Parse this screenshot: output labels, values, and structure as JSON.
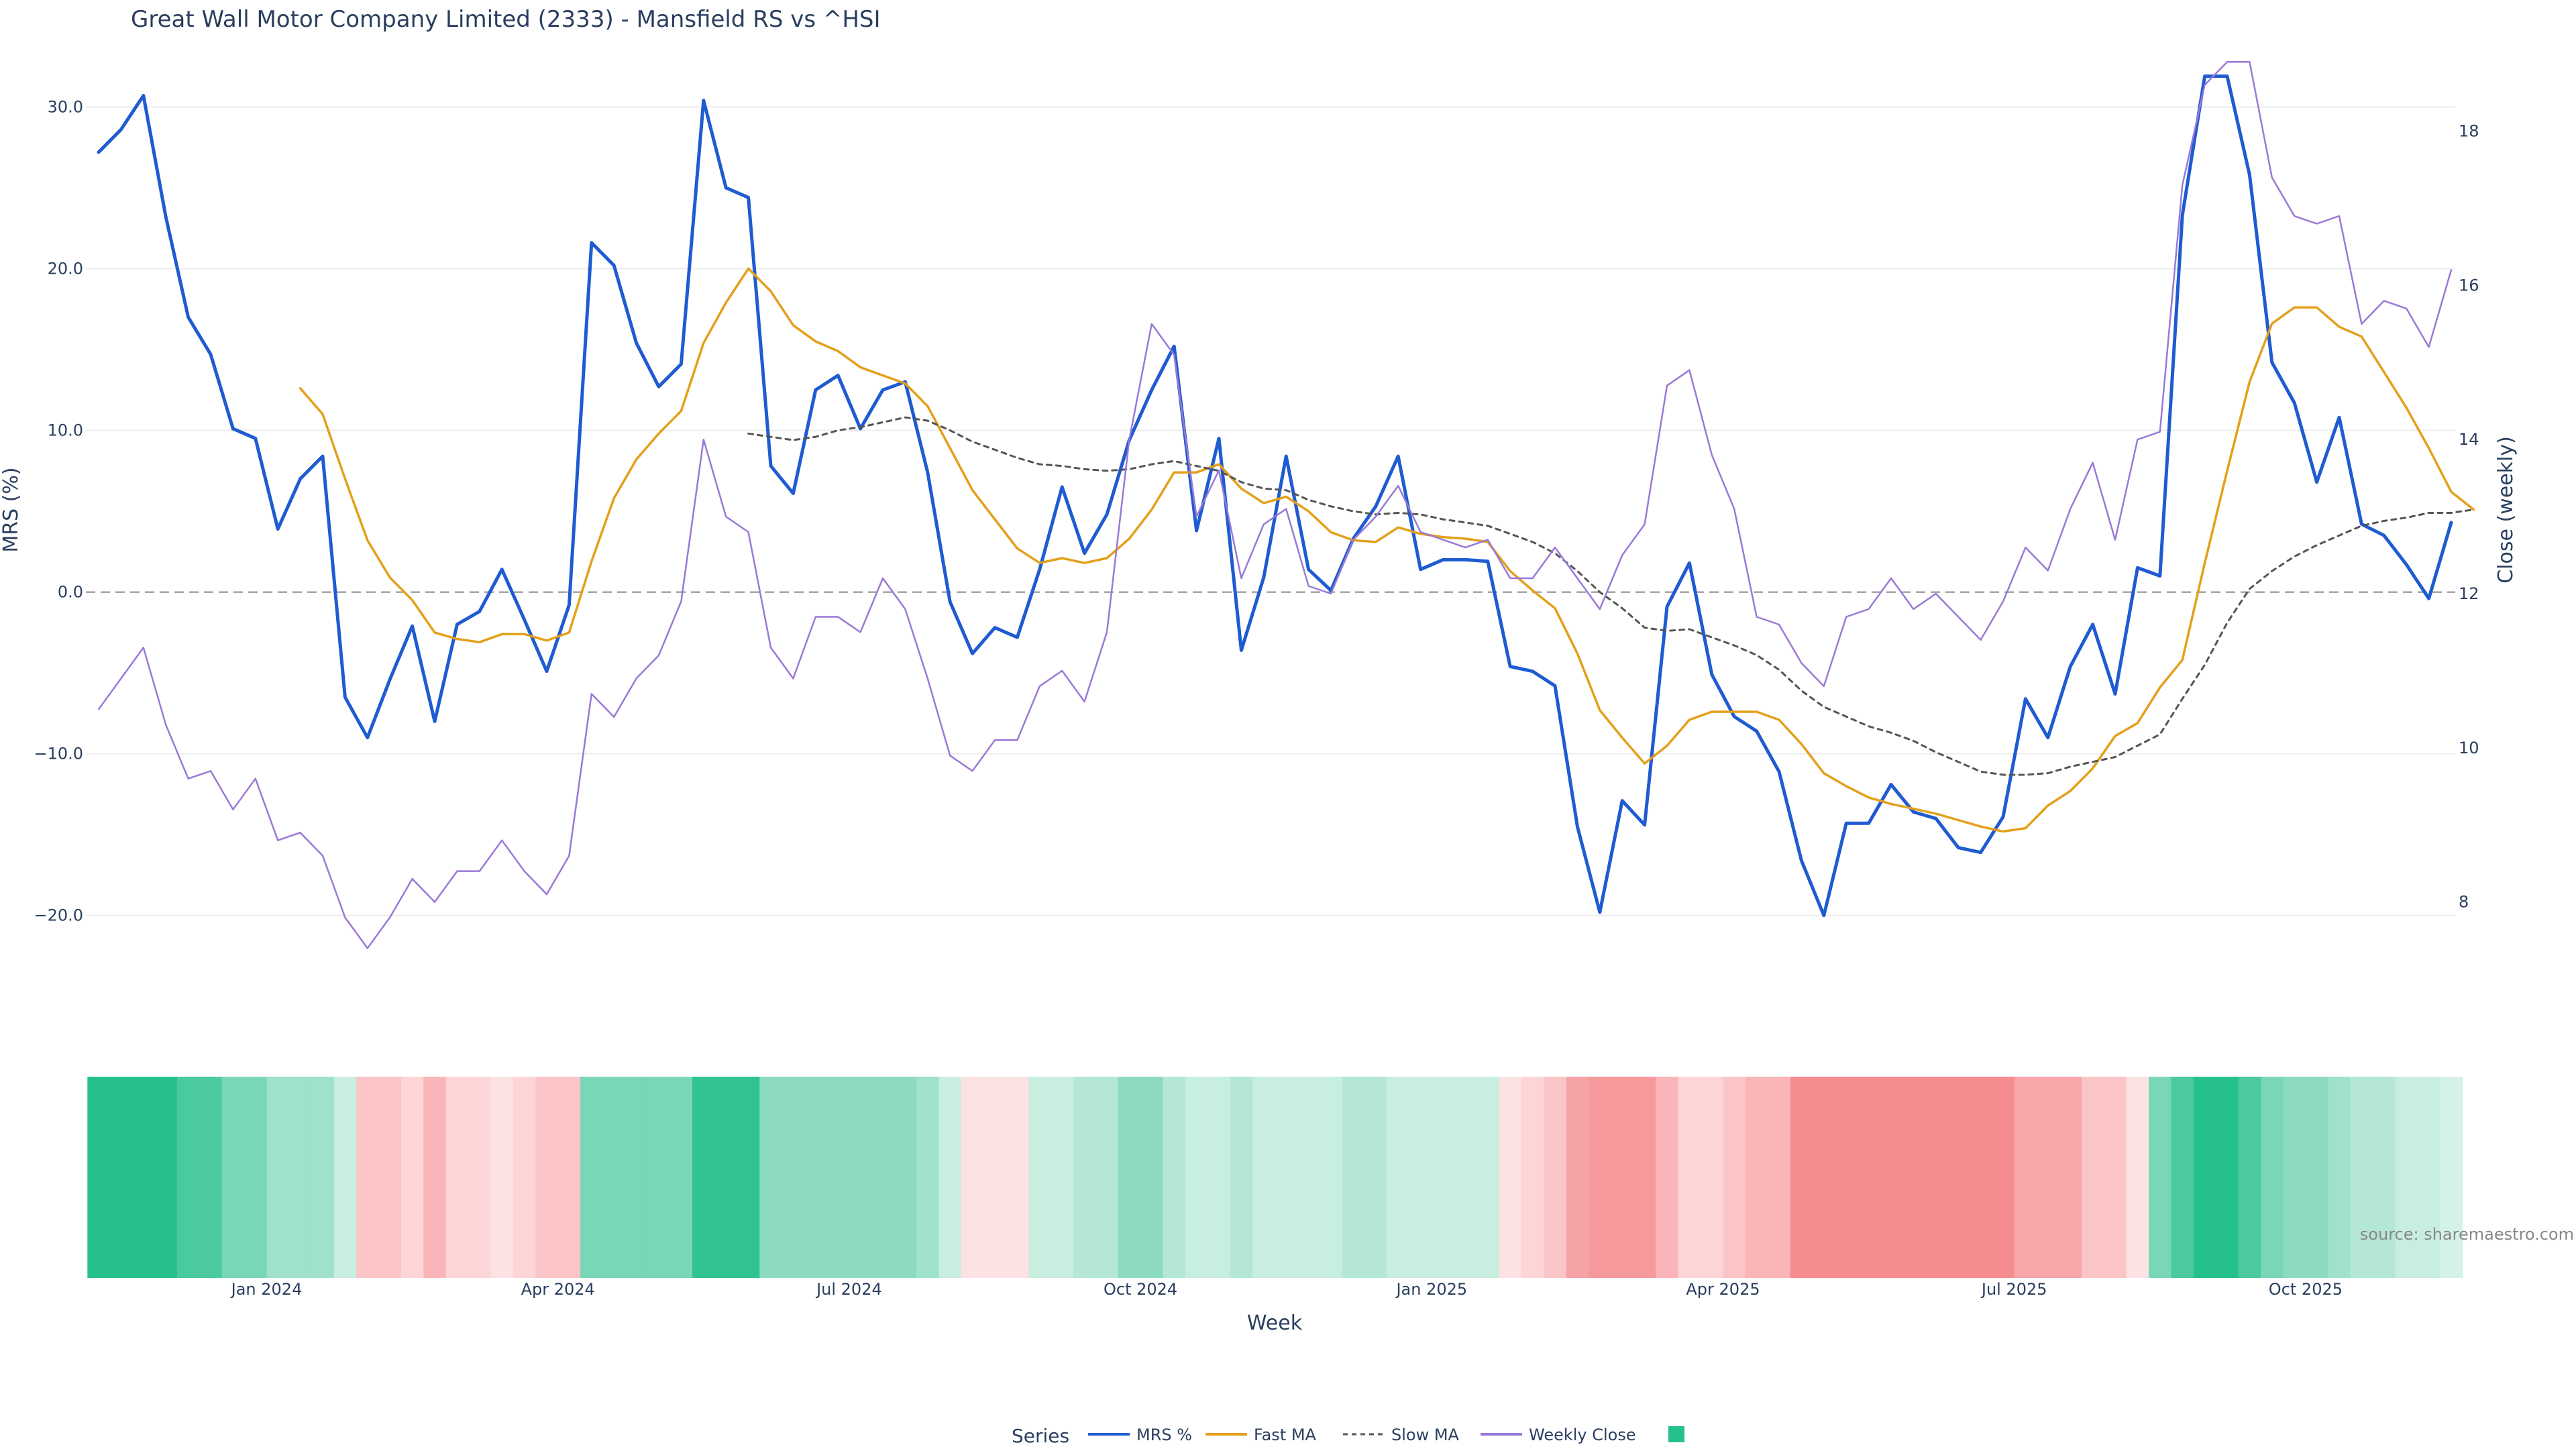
{
  "title": "Great Wall Motor Company Limited (2333) - Mansfield RS vs ^HSI",
  "source": "source: sharemaestro.com",
  "legend": {
    "title": "Series",
    "items": [
      {
        "label": "MRS %",
        "color": "#1f5bd1",
        "style": "solid"
      },
      {
        "label": "Fast MA",
        "color": "#e3a01b",
        "style": "solid"
      },
      {
        "label": "Slow MA",
        "color": "#555555",
        "style": "dotted"
      },
      {
        "label": "Weekly Close",
        "color": "#9a79d6",
        "style": "solid"
      },
      {
        "label": "",
        "color": "#26c08e",
        "style": "square"
      }
    ]
  },
  "chart_data": {
    "type": "line",
    "x_label": "Week",
    "y_label": "MRS (%)",
    "y2_label": "Close (weekly)",
    "y_ticks": [
      30.0,
      20.0,
      10.0,
      0.0,
      -10.0,
      -20.0
    ],
    "y_tick_labels": [
      "30.0",
      "20.0",
      "10.0",
      "0.0",
      "−10.0",
      "−20.0"
    ],
    "y_range": [
      -22.5,
      33.5
    ],
    "y2_ticks": [
      8,
      10,
      12,
      14,
      16,
      18
    ],
    "y2_range": [
      7.3,
      19.05
    ],
    "x_tick_labels": [
      "Jan 2024",
      "Apr 2024",
      "Jul 2024",
      "Oct 2024",
      "Jan 2025",
      "Apr 2025",
      "Jul 2025",
      "Oct 2025"
    ],
    "x_tick_weeks": [
      7.5,
      20.5,
      33.5,
      46.5,
      59.5,
      72.5,
      85.5,
      98.5
    ],
    "zero_line": 0,
    "grid": true,
    "legend_position": "bottom-center",
    "series": [
      {
        "name": "MRS %",
        "color": "#1f5bd1",
        "axis": "left",
        "values": [
          27.2,
          28.6,
          30.7,
          23.2,
          17.0,
          14.7,
          10.1,
          9.5,
          3.9,
          7.0,
          8.4,
          -6.5,
          -9.0,
          -5.4,
          -2.1,
          -8.0,
          -2.0,
          -1.2,
          1.4,
          -1.7,
          -4.9,
          -0.8,
          21.6,
          20.2,
          15.4,
          12.7,
          14.1,
          30.4,
          25.0,
          24.4,
          7.8,
          6.1,
          12.5,
          13.4,
          10.1,
          12.5,
          13.0,
          7.4,
          -0.6,
          -3.8,
          -2.2,
          -2.8,
          1.4,
          6.5,
          2.4,
          4.8,
          9.4,
          12.5,
          15.2,
          3.8,
          9.5,
          -3.6,
          0.9,
          8.4,
          1.4,
          0.1,
          3.3,
          5.3,
          8.4,
          1.4,
          2.0,
          2.0,
          1.9,
          -4.6,
          -4.9,
          -5.8,
          -14.5,
          -19.8,
          -12.9,
          -14.4,
          -0.9,
          1.8,
          -5.1,
          -7.7,
          -8.6,
          -11.1,
          -16.6,
          -20.0,
          -14.3,
          -14.3,
          -11.9,
          -13.6,
          -14.0,
          -15.8,
          -16.1,
          -13.9,
          -6.6,
          -9.0,
          -4.6,
          -2.0,
          -6.3,
          1.5,
          1.0,
          23.3,
          31.9,
          31.9,
          25.8,
          14.2,
          11.7,
          6.8,
          10.8,
          4.2,
          3.5,
          1.7,
          -0.4,
          4.3
        ]
      },
      {
        "name": "Fast MA",
        "color": "#e3a01b",
        "axis": "left",
        "values": [
          null,
          null,
          null,
          null,
          null,
          null,
          null,
          null,
          null,
          12.6,
          11.0,
          7.0,
          3.2,
          0.9,
          -0.5,
          -2.5,
          -2.9,
          -3.1,
          -2.6,
          -2.6,
          -3.0,
          -2.5,
          1.9,
          5.8,
          8.2,
          9.8,
          11.2,
          15.4,
          17.9,
          20.0,
          18.6,
          16.5,
          15.5,
          14.9,
          13.9,
          13.4,
          12.9,
          11.5,
          8.9,
          6.3,
          4.5,
          2.7,
          1.8,
          2.1,
          1.8,
          2.1,
          3.3,
          5.1,
          7.4,
          7.4,
          7.9,
          6.4,
          5.5,
          5.9,
          5.0,
          3.7,
          3.2,
          3.1,
          4.0,
          3.6,
          3.4,
          3.3,
          3.1,
          1.3,
          0.1,
          -1.0,
          -3.8,
          -7.3,
          -9.0,
          -10.6,
          -9.5,
          -7.9,
          -7.4,
          -7.4,
          -7.4,
          -7.9,
          -9.4,
          -11.2,
          -12.0,
          -12.7,
          -13.1,
          -13.4,
          -13.7,
          -14.1,
          -14.5,
          -14.8,
          -14.6,
          -13.2,
          -12.3,
          -10.9,
          -8.9,
          -8.1,
          -5.9,
          -4.2,
          1.8,
          7.5,
          13.0,
          16.6,
          17.6,
          17.6,
          16.4,
          15.8,
          13.6,
          11.4,
          8.9,
          6.2,
          5.1
        ]
      },
      {
        "name": "Slow MA",
        "color": "#555555",
        "axis": "left",
        "values": [
          null,
          null,
          null,
          null,
          null,
          null,
          null,
          null,
          null,
          null,
          null,
          null,
          null,
          null,
          null,
          null,
          null,
          null,
          null,
          null,
          null,
          null,
          null,
          null,
          null,
          null,
          null,
          null,
          null,
          9.8,
          9.6,
          9.4,
          9.6,
          10.0,
          10.2,
          10.5,
          10.8,
          10.6,
          10.0,
          9.3,
          8.8,
          8.3,
          7.9,
          7.8,
          7.6,
          7.5,
          7.6,
          7.9,
          8.1,
          7.8,
          7.5,
          6.8,
          6.4,
          6.3,
          5.7,
          5.3,
          5.0,
          4.8,
          4.9,
          4.8,
          4.5,
          4.3,
          4.1,
          3.6,
          3.1,
          2.4,
          1.3,
          0.0,
          -1.0,
          -2.2,
          -2.4,
          -2.3,
          -2.8,
          -3.3,
          -3.9,
          -4.8,
          -6.1,
          -7.1,
          -7.7,
          -8.3,
          -8.7,
          -9.2,
          -9.9,
          -10.5,
          -11.1,
          -11.3,
          -11.3,
          -11.2,
          -10.8,
          -10.5,
          -10.2,
          -9.5,
          -8.8,
          -6.6,
          -4.5,
          -1.9,
          0.2,
          1.3,
          2.2,
          2.9,
          3.5,
          4.1,
          4.4,
          4.6,
          4.9,
          4.9,
          5.1
        ]
      },
      {
        "name": "Weekly Close",
        "color": "#9a79d6",
        "axis": "right",
        "values": [
          10.5,
          10.9,
          11.3,
          10.3,
          9.6,
          9.7,
          9.2,
          9.6,
          8.8,
          8.9,
          8.6,
          7.8,
          7.4,
          7.8,
          8.3,
          8.0,
          8.4,
          8.4,
          8.8,
          8.4,
          8.1,
          8.6,
          10.7,
          10.4,
          10.9,
          11.2,
          11.9,
          14.0,
          13.0,
          12.8,
          11.3,
          10.9,
          11.7,
          11.7,
          11.5,
          12.2,
          11.8,
          10.9,
          9.9,
          9.7,
          10.1,
          10.1,
          10.8,
          11.0,
          10.6,
          11.5,
          14.0,
          15.5,
          15.1,
          13.0,
          13.6,
          12.2,
          12.9,
          13.1,
          12.1,
          12.0,
          12.7,
          13.0,
          13.4,
          12.8,
          12.7,
          12.6,
          12.7,
          12.2,
          12.2,
          12.6,
          12.2,
          11.8,
          12.5,
          12.9,
          14.7,
          14.9,
          13.8,
          13.1,
          11.7,
          11.6,
          11.1,
          10.8,
          11.7,
          11.8,
          12.2,
          11.8,
          12.0,
          11.7,
          11.4,
          11.9,
          12.6,
          12.3,
          13.1,
          13.7,
          12.7,
          14.0,
          14.1,
          17.3,
          18.6,
          18.9,
          18.9,
          17.4,
          16.9,
          16.8,
          16.9,
          15.5,
          15.8,
          15.7,
          15.2,
          16.2
        ]
      }
    ],
    "heat_colors": [
      "#26c08e",
      "#26c08e",
      "#26c08e",
      "#26c08e",
      "#4cca9f",
      "#4cca9f",
      "#79d6b7",
      "#79d6b7",
      "#9fe1ca",
      "#9fe1ca",
      "#9fe1ca",
      "#c8eedf",
      "#fbc5c8",
      "#fbc5c8",
      "#fdd5d7",
      "#f9b5b8",
      "#fdd5d7",
      "#fdd5d7",
      "#fde2e3",
      "#fdd5d7",
      "#fbc5c8",
      "#fbc5c8",
      "#79d6b7",
      "#79d6b7",
      "#79d6b7",
      "#79d6b7",
      "#79d6b7",
      "#30c292",
      "#30c292",
      "#30c292",
      "#8cdbbf",
      "#8cdbbf",
      "#8cdbbf",
      "#8cdbbf",
      "#8cdbbf",
      "#8cdbbf",
      "#8cdbbf",
      "#9fe1ca",
      "#c8eedf",
      "#fde2e3",
      "#fde2e3",
      "#fde2e3",
      "#c8eedf",
      "#c8eedf",
      "#b4e8d4",
      "#b4e8d4",
      "#8cdbbf",
      "#8cdbbf",
      "#b4e8d4",
      "#c8eedf",
      "#c8eedf",
      "#b4e8d4",
      "#c8eedf",
      "#c8eedf",
      "#c8eedf",
      "#c8eedf",
      "#b4e8d4",
      "#b4e8d4",
      "#c8eedf",
      "#c8eedf",
      "#c8eedf",
      "#c8eedf",
      "#c8eedf",
      "#fde2e3",
      "#fdd5d7",
      "#fbc5c8",
      "#f5a3a6",
      "#f5999c",
      "#f5999c",
      "#f5999c",
      "#f9b5b8",
      "#fdd5d7",
      "#fdd5d7",
      "#fbc5c8",
      "#f9b5b8",
      "#f9b5b8",
      "#f58c90",
      "#f58c90",
      "#f58c90",
      "#f58c90",
      "#f58c90",
      "#f58c90",
      "#f58c90",
      "#f58c90",
      "#f58c90",
      "#f58c90",
      "#f7a6a9",
      "#f7a6a9",
      "#f7a6a9",
      "#fbc5c8",
      "#fbc5c8",
      "#fde2e3",
      "#79d6b7",
      "#4cca9f",
      "#26c08e",
      "#26c08e",
      "#4cca9f",
      "#79d6b7",
      "#8cdbbf",
      "#8cdbbf",
      "#9fe1ca",
      "#b4e8d4",
      "#b4e8d4",
      "#c8eedf",
      "#c8eedf",
      "#d4f2e7"
    ]
  }
}
